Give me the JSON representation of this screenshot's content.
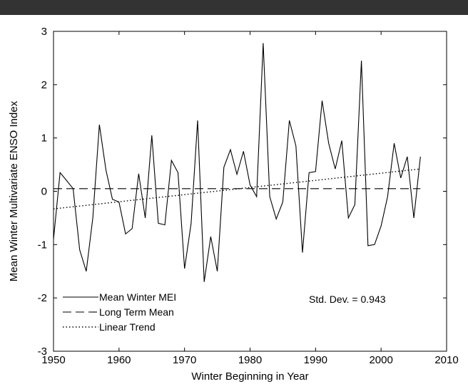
{
  "chart_data": {
    "type": "line",
    "xlabel": "Winter Beginning in Year",
    "ylabel": "Mean Winter Multivariate ENSO Index",
    "xlim": [
      1950,
      2010
    ],
    "ylim": [
      -3,
      3
    ],
    "xticks": [
      1950,
      1960,
      1970,
      1980,
      1990,
      2000,
      2010
    ],
    "yticks": [
      -3,
      -2,
      -1,
      0,
      1,
      2,
      3
    ],
    "grid": false,
    "legend_position": "bottom-left",
    "annotation": "Std. Dev. = 0.943",
    "series": [
      {
        "name": "Mean Winter MEI",
        "style": "solid",
        "x": [
          1950,
          1951,
          1952,
          1953,
          1954,
          1955,
          1956,
          1957,
          1958,
          1959,
          1960,
          1961,
          1962,
          1963,
          1964,
          1965,
          1966,
          1967,
          1968,
          1969,
          1970,
          1971,
          1972,
          1973,
          1974,
          1975,
          1976,
          1977,
          1978,
          1979,
          1980,
          1981,
          1982,
          1983,
          1984,
          1985,
          1986,
          1987,
          1988,
          1989,
          1990,
          1991,
          1992,
          1993,
          1994,
          1995,
          1996,
          1997,
          1998,
          1999,
          2000,
          2001,
          2002,
          2003,
          2004,
          2005,
          2006
        ],
        "y": [
          -0.9,
          0.35,
          0.2,
          0.05,
          -1.1,
          -1.5,
          -0.5,
          1.25,
          0.4,
          -0.15,
          -0.2,
          -0.8,
          -0.7,
          0.33,
          -0.5,
          1.05,
          -0.6,
          -0.63,
          0.58,
          0.35,
          -1.45,
          -0.6,
          1.33,
          -1.7,
          -0.85,
          -1.5,
          0.45,
          0.78,
          0.32,
          0.75,
          0.12,
          -0.1,
          2.78,
          -0.1,
          -0.52,
          -0.2,
          1.33,
          0.85,
          -1.15,
          0.35,
          0.37,
          1.7,
          0.9,
          0.42,
          0.95,
          -0.5,
          -0.25,
          2.45,
          -1.02,
          -1.0,
          -0.65,
          -0.1,
          0.9,
          0.25,
          0.65,
          -0.5,
          0.65
        ]
      },
      {
        "name": "Long Term Mean",
        "style": "dashed",
        "x": [
          1950,
          2006
        ],
        "y": [
          0.05,
          0.05
        ]
      },
      {
        "name": "Linear Trend",
        "style": "dotted",
        "x": [
          1950,
          2006
        ],
        "y": [
          -0.33,
          0.42
        ]
      }
    ]
  }
}
